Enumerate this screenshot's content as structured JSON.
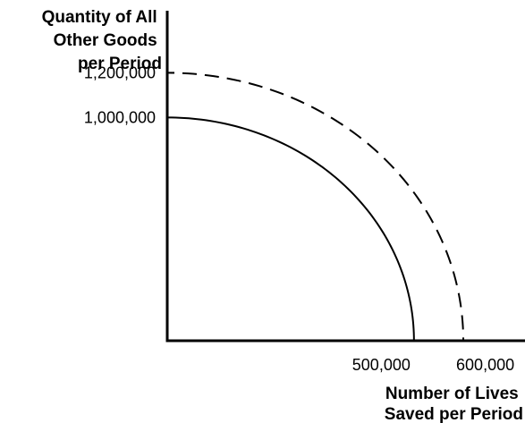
{
  "chart_data": {
    "type": "line",
    "title": "",
    "ylabel_lines": [
      "Quantity of All",
      "Other Goods",
      "per Period"
    ],
    "xlabel_lines": [
      "Number of Lives",
      "Saved per Period"
    ],
    "x_ticks": [
      {
        "value": 500000,
        "label": "500,000"
      },
      {
        "value": 600000,
        "label": "600,000"
      }
    ],
    "y_ticks": [
      {
        "value": 1000000,
        "label": "1,000,000"
      },
      {
        "value": 1200000,
        "label": "1,200,000"
      }
    ],
    "xlim": [
      0,
      725000
    ],
    "ylim": [
      0,
      1450000
    ],
    "series": [
      {
        "style": "solid",
        "x_intercept": 500000,
        "y_intercept": 1000000,
        "color": "#000000"
      },
      {
        "style": "dashed",
        "x_intercept": 600000,
        "y_intercept": 1200000,
        "color": "#000000"
      }
    ],
    "grid": false,
    "legend": "none"
  }
}
